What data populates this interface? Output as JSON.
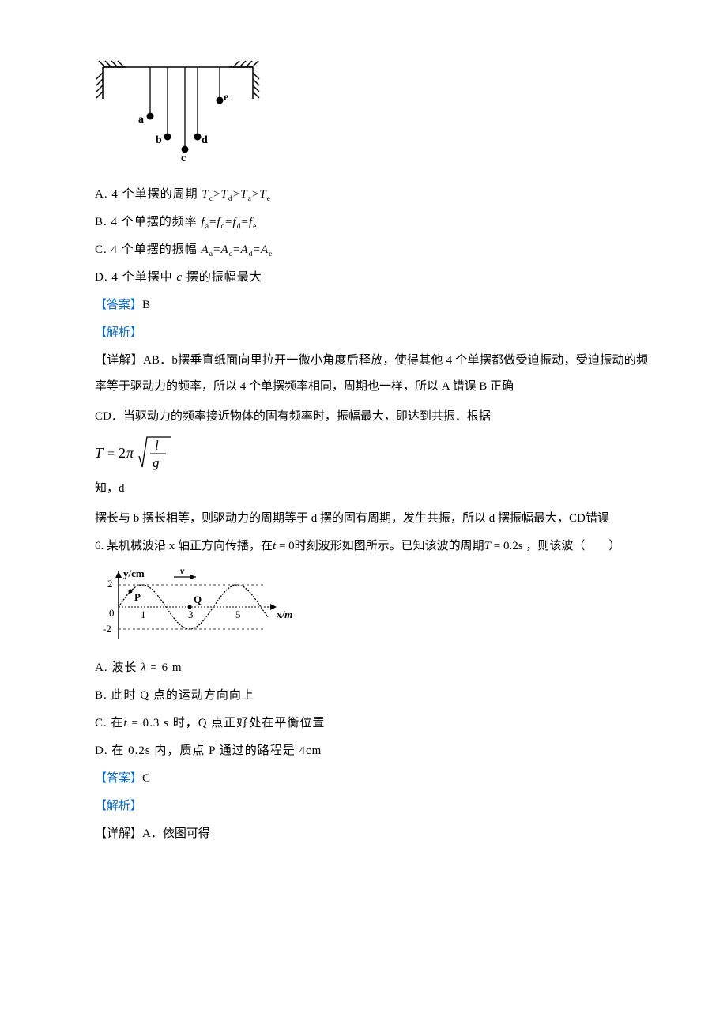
{
  "q5": {
    "diagram": {
      "support_stroke": "#000000",
      "beam_y": 20,
      "beam_x1": 10,
      "beam_x2": 200,
      "hatch_angle_left": -1,
      "pendulums": [
        {
          "x": 70,
          "len": 62,
          "label": "a",
          "lx": -15,
          "ly": 8,
          "font_weight": "bold"
        },
        {
          "x": 92,
          "len": 88,
          "label": "b",
          "lx": -15,
          "ly": 8,
          "font_weight": "bold"
        },
        {
          "x": 114,
          "len": 104,
          "label": "c",
          "lx": -5,
          "ly": 15,
          "font_weight": "bold"
        },
        {
          "x": 130,
          "len": 88,
          "label": "d",
          "lx": 5,
          "ly": 8,
          "font_weight": "bold"
        },
        {
          "x": 158,
          "len": 42,
          "label": "e",
          "lx": 5,
          "ly": 0,
          "font_weight": "bold"
        }
      ],
      "bob_radius": 4.5
    },
    "optA": {
      "opt_letter": "A.",
      "prefix": "4 个单摆的周期 ",
      "body": "T_c>T_d>T_a>T_e"
    },
    "optB": {
      "opt_letter": "B.",
      "prefix": "4 个单摆的频率 ",
      "body": "f_a=f_c=f_d=f_e"
    },
    "optC": {
      "opt_letter": "C.",
      "prefix": "4 个单摆的振幅 ",
      "body": "A_a=A_c=A_d=A_e"
    },
    "optD": {
      "opt_letter": "D.",
      "prefix": "4 个单摆中 ",
      "body_var": "c",
      "suffix": " 摆的振幅最大"
    },
    "answer_label": "【答案】",
    "answer_value": "B",
    "analysis_label": "【解析】",
    "detail_label": "【详解】",
    "detailAB": "AB．b摆垂直纸面向里拉开一微小角度后释放，使得其他 4 个单摆都做受迫振动，受迫振动的频率等于驱动力的频率，所以 4 个单摆频率相同，周期也一样，所以 A 错误 B 正确",
    "detailCD_prefix": "CD．当驱动力的频率接近物体的固有频率时，振幅最大，即达到共振．根据",
    "formula": "T = 2π √(l/g)",
    "detailCD_suffix": "知，d",
    "detailCD_line2": "摆长与 b 摆长相等，则驱动力的周期等于 d 摆的固有周期，发生共振，所以 d 摆振幅最大，CD错误"
  },
  "q6": {
    "stem_prefix": "6. 某机械波沿 x 轴正方向传播，在",
    "stem_t0": "t = 0",
    "stem_mid": "时刻波形如图所示。已知该波的周期",
    "stem_T": "T = 0.2s",
    "stem_suffix": "，则该波（　　）",
    "wave": {
      "amplitude": 2,
      "wavelength": 4,
      "x_end": 6.3,
      "y_color": "#000",
      "grid_color": "#000",
      "dash": "2,2",
      "labels": {
        "y": "y/cm",
        "x": "x/m"
      },
      "y_ticks": [
        {
          "v": 2,
          "label": "2"
        },
        {
          "v": -2,
          "label": "-2"
        }
      ],
      "x_ticks": [
        {
          "v": 1,
          "label": "1"
        },
        {
          "v": 3,
          "label": "3"
        },
        {
          "v": 5,
          "label": "5"
        }
      ],
      "P": {
        "x": 0.5,
        "label": "P"
      },
      "Q": {
        "x": 3.0,
        "label": "Q"
      },
      "v_arrow": true
    },
    "optA": {
      "opt_letter": "A.",
      "text_pre": "波长",
      "var": "λ = 6",
      "unit": "m"
    },
    "optB": {
      "opt_letter": "B.",
      "text": "此时 Q 点的运动方向向上"
    },
    "optC": {
      "opt_letter": "C.",
      "text_pre": "在",
      "var": "t = 0.3",
      "unit": "s 时，Q 点正好处在平衡位置"
    },
    "optD": {
      "opt_letter": "D.",
      "text": "在 0.2s 内，质点 P 通过的路程是 4cm"
    },
    "answer_label": "【答案】",
    "answer_value": "C",
    "analysis_label": "【解析】",
    "detail_label": "【详解】",
    "detailA": "A．依图可得"
  },
  "colors": {
    "blue": "#0066cc",
    "black": "#000000"
  }
}
